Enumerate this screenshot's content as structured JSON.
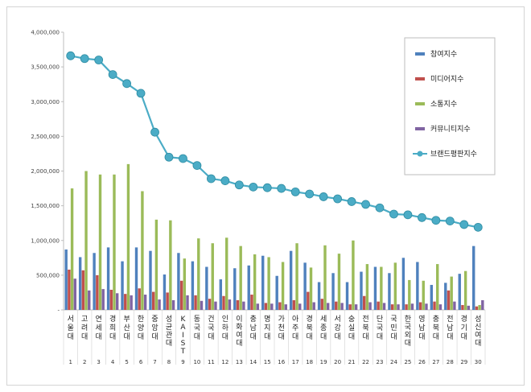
{
  "chart_data": {
    "type": "bar",
    "title": "",
    "xlabel": "",
    "ylabel": "",
    "ylim": [
      0,
      4000000
    ],
    "yticks": [
      "4,000,000",
      "3,500,000",
      "3,000,000",
      "2,500,000",
      "2,000,000",
      "1,500,000",
      "1,000,000",
      "500,000",
      "-"
    ],
    "ytick_values": [
      4000000,
      3500000,
      3000000,
      2500000,
      2000000,
      1500000,
      1000000,
      500000,
      0
    ],
    "grid": false,
    "legend_position": "right",
    "categories": [
      "서울대",
      "고려대",
      "연세대",
      "경희대",
      "부산대",
      "한양대",
      "중앙대",
      "성균관대",
      "KAIST",
      "동국대",
      "건국대",
      "인하대",
      "이화여대",
      "충남대",
      "명지대",
      "가천대",
      "아주대",
      "경북대",
      "세종대",
      "서강대",
      "숭실대",
      "전북대",
      "단국대",
      "국민대",
      "한국외대",
      "영남대",
      "충북대",
      "전남대",
      "경기대",
      "성신여대"
    ],
    "ranks": [
      "1",
      "2",
      "3",
      "4",
      "5",
      "6",
      "7",
      "8",
      "9",
      "10",
      "11",
      "12",
      "13",
      "14",
      "15",
      "16",
      "17",
      "18",
      "19",
      "20",
      "21",
      "22",
      "23",
      "24",
      "25",
      "26",
      "27",
      "28",
      "29",
      "30"
    ],
    "series": [
      {
        "name": "참여지수",
        "kind": "bar",
        "color": "#4F81BD",
        "values": [
          870000,
          760000,
          820000,
          900000,
          700000,
          900000,
          850000,
          510000,
          820000,
          700000,
          620000,
          440000,
          600000,
          640000,
          780000,
          490000,
          850000,
          680000,
          400000,
          530000,
          400000,
          550000,
          620000,
          530000,
          750000,
          690000,
          360000,
          390000,
          520000,
          920000
        ]
      },
      {
        "name": "미디어지수",
        "kind": "bar",
        "color": "#C0504D",
        "values": [
          580000,
          570000,
          500000,
          290000,
          230000,
          310000,
          260000,
          250000,
          420000,
          210000,
          160000,
          200000,
          140000,
          220000,
          100000,
          110000,
          140000,
          260000,
          160000,
          120000,
          80000,
          200000,
          120000,
          80000,
          80000,
          110000,
          120000,
          280000,
          70000,
          50000
        ]
      },
      {
        "name": "소통지수",
        "kind": "bar",
        "color": "#9BBB59",
        "values": [
          1750000,
          2000000,
          1950000,
          1950000,
          2100000,
          1710000,
          1300000,
          1290000,
          740000,
          1030000,
          960000,
          1040000,
          920000,
          800000,
          760000,
          690000,
          960000,
          610000,
          930000,
          810000,
          1000000,
          660000,
          620000,
          680000,
          430000,
          420000,
          660000,
          480000,
          560000,
          70000
        ]
      },
      {
        "name": "커뮤니티지수",
        "kind": "bar",
        "color": "#8064A2",
        "values": [
          450000,
          280000,
          300000,
          240000,
          210000,
          220000,
          150000,
          140000,
          210000,
          130000,
          120000,
          150000,
          120000,
          90000,
          90000,
          80000,
          90000,
          110000,
          100000,
          100000,
          80000,
          110000,
          100000,
          80000,
          90000,
          90000,
          80000,
          120000,
          60000,
          140000
        ]
      },
      {
        "name": "브랜드평판지수",
        "kind": "line",
        "color": "#4BACC6",
        "values": [
          3660000,
          3620000,
          3600000,
          3390000,
          3260000,
          3120000,
          2560000,
          2200000,
          2180000,
          2080000,
          1890000,
          1860000,
          1800000,
          1770000,
          1760000,
          1750000,
          1700000,
          1670000,
          1630000,
          1600000,
          1560000,
          1520000,
          1470000,
          1380000,
          1370000,
          1330000,
          1290000,
          1280000,
          1230000,
          1190000
        ]
      }
    ]
  }
}
